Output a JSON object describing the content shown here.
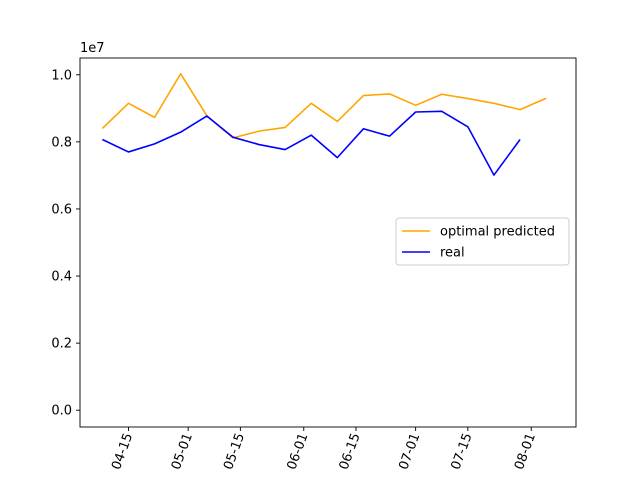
{
  "chart_data": {
    "type": "line",
    "xlabel": "",
    "ylabel": "",
    "y_scale_label": "1e7",
    "xlim": [
      "2024-04-02",
      "2024-08-13"
    ],
    "ylim": [
      -0.05,
      1.05
    ],
    "y_ticks": [
      0.0,
      0.2,
      0.4,
      0.6,
      0.8,
      1.0
    ],
    "y_tick_labels": [
      "0.0",
      "0.2",
      "0.4",
      "0.6",
      "0.8",
      "1.0"
    ],
    "x_ticks": [
      "2024-04-15",
      "2024-05-01",
      "2024-05-15",
      "2024-06-01",
      "2024-06-15",
      "2024-07-01",
      "2024-07-15",
      "2024-08-01"
    ],
    "x_tick_labels": [
      "04-15",
      "05-01",
      "05-15",
      "06-01",
      "06-15",
      "07-01",
      "07-15",
      "08-01"
    ],
    "legend_position": "center-right",
    "grid": false,
    "series": [
      {
        "name": "optimal predicted",
        "color": "#FFA500",
        "x": [
          "2024-04-08",
          "2024-04-15",
          "2024-04-22",
          "2024-04-29",
          "2024-05-06",
          "2024-05-13",
          "2024-05-20",
          "2024-05-27",
          "2024-06-03",
          "2024-06-10",
          "2024-06-17",
          "2024-06-24",
          "2024-07-01",
          "2024-07-08",
          "2024-07-15",
          "2024-07-22",
          "2024-07-29",
          "2024-08-05"
        ],
        "values": [
          0.84,
          0.915,
          0.873,
          1.003,
          0.878,
          0.812,
          0.832,
          0.843,
          0.915,
          0.861,
          0.938,
          0.943,
          0.909,
          0.942,
          0.929,
          0.915,
          0.896,
          0.93
        ]
      },
      {
        "name": "real",
        "color": "#0000FF",
        "x": [
          "2024-04-08",
          "2024-04-15",
          "2024-04-22",
          "2024-04-29",
          "2024-05-06",
          "2024-05-13",
          "2024-05-20",
          "2024-05-27",
          "2024-06-03",
          "2024-06-10",
          "2024-06-17",
          "2024-06-24",
          "2024-07-01",
          "2024-07-08",
          "2024-07-15",
          "2024-07-22",
          "2024-07-29"
        ],
        "values": [
          0.807,
          0.77,
          0.794,
          0.829,
          0.877,
          0.814,
          0.792,
          0.777,
          0.82,
          0.753,
          0.839,
          0.817,
          0.889,
          0.891,
          0.845,
          0.701,
          0.807
        ]
      }
    ]
  }
}
